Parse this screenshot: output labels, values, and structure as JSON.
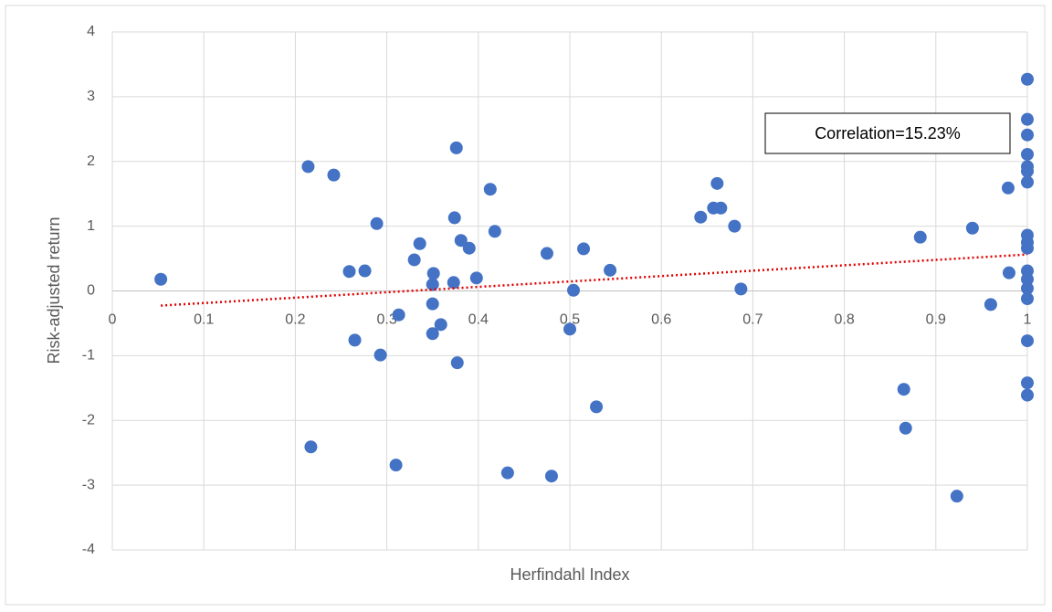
{
  "chart_data": {
    "type": "scatter",
    "xlabel": "Herfindahl Index",
    "ylabel": "Risk-adjusted return",
    "annotation": "Correlation=15.23%",
    "color": "#4472c4",
    "trendline_color": "#e00000",
    "grid": true,
    "trendline": true,
    "xlim": [
      0,
      1
    ],
    "xticks": [
      0,
      0.1,
      0.2,
      0.3,
      0.4,
      0.5,
      0.6,
      0.7,
      0.8,
      0.9,
      1
    ],
    "ylim": [
      -4,
      4
    ],
    "yticks": [
      -4,
      -3,
      -2,
      -1,
      0,
      1,
      2,
      3,
      4
    ],
    "x": [
      0.053,
      0.214,
      0.242,
      0.259,
      0.276,
      0.265,
      0.289,
      0.293,
      0.217,
      0.313,
      0.31,
      0.33,
      0.336,
      0.351,
      0.35,
      0.35,
      0.35,
      0.359,
      0.374,
      0.376,
      0.373,
      0.381,
      0.39,
      0.377,
      0.398,
      0.413,
      0.418,
      0.432,
      0.475,
      0.48,
      0.5,
      0.504,
      0.515,
      0.529,
      0.544,
      0.643,
      0.657,
      0.661,
      0.665,
      0.68,
      0.687,
      0.865,
      0.867,
      0.883,
      0.923,
      0.94,
      0.96,
      0.979,
      0.98,
      1,
      1,
      1,
      1,
      1,
      1,
      1,
      1,
      1,
      1,
      1,
      1,
      1,
      1,
      1,
      1,
      1
    ],
    "y": [
      0.18,
      1.92,
      1.79,
      0.3,
      0.31,
      -0.76,
      1.04,
      -0.99,
      -2.41,
      -0.37,
      -2.69,
      0.48,
      0.73,
      0.27,
      0.1,
      -0.2,
      -0.66,
      -0.52,
      1.13,
      2.21,
      0.13,
      0.78,
      0.66,
      -1.11,
      0.2,
      1.57,
      0.92,
      -2.81,
      0.58,
      -2.86,
      -0.59,
      0.01,
      0.65,
      -1.79,
      0.32,
      1.14,
      1.28,
      1.66,
      1.28,
      1.0,
      0.03,
      -1.52,
      -2.12,
      0.83,
      -3.17,
      0.97,
      -0.21,
      1.59,
      0.28,
      3.27,
      2.65,
      2.41,
      2.11,
      1.92,
      1.85,
      1.68,
      0.86,
      0.75,
      0.66,
      0.31,
      0.18,
      0.04,
      -0.12,
      -0.77,
      -1.42,
      -1.61
    ]
  }
}
